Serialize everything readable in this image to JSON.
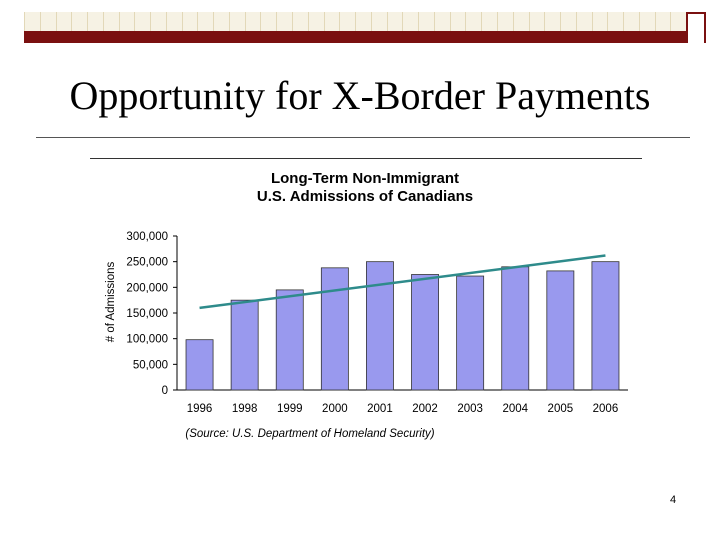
{
  "slide": {
    "title": "Opportunity for X-Border Payments",
    "page_number": "4"
  },
  "chart_data": {
    "type": "bar",
    "title_line1": "Long-Term Non-Immigrant",
    "title_line2": "U.S. Admissions of Canadians",
    "ylabel": "# of Admissions",
    "xlabel": "",
    "source": "(Source:  U.S. Department of Homeland Security)",
    "categories": [
      "1996",
      "1998",
      "1999",
      "2000",
      "2001",
      "2002",
      "2003",
      "2004",
      "2005",
      "2006"
    ],
    "values": [
      98000,
      175000,
      195000,
      238000,
      250000,
      225000,
      222000,
      240000,
      232000,
      250000
    ],
    "ylim": [
      0,
      300000
    ],
    "yticks": [
      0,
      50000,
      100000,
      150000,
      200000,
      250000,
      300000
    ],
    "ytick_labels": [
      "0",
      "50,000",
      "100,000",
      "150,000",
      "200,000",
      "250,000",
      "300,000"
    ],
    "trendline": {
      "start": 160000,
      "end": 262000
    },
    "bar_color": "#9999ee",
    "trend_color": "#2e8b8b",
    "grid": false,
    "legend": "none"
  },
  "theme": {
    "accent": "#7a1010"
  }
}
